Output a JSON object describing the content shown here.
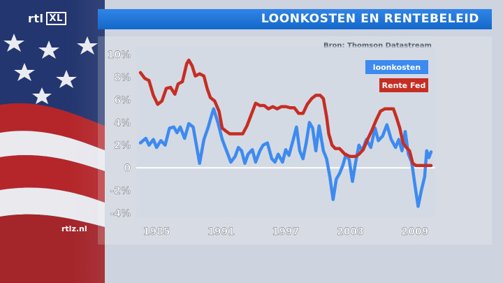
{
  "channel": {
    "logo_text": "rtl",
    "logo_box": "XL",
    "watermark": "rtlz.nl"
  },
  "header": {
    "title": "LOONKOSTEN EN RENTEBELEID"
  },
  "source": "Bron: Thomson Datastream",
  "colors": {
    "title_bar": "#1f77d9",
    "loonkosten": "#3d8bf0",
    "rente_fed": "#c62e24",
    "zero_line": "#ffffff"
  },
  "chart_data": {
    "type": "line",
    "title": "LOONKOSTEN EN RENTEBELEID",
    "xlabel": "",
    "ylabel": "",
    "x_ticks": [
      "1985",
      "1991",
      "1997",
      "2003",
      "2009"
    ],
    "y_ticks": [
      "10%",
      "8%",
      "6%",
      "4%",
      "2%",
      "0",
      "-2%",
      "-4%"
    ],
    "xlim": [
      1983.5,
      2010.5
    ],
    "ylim": [
      -4,
      10
    ],
    "grid": false,
    "legend_position": "top-right",
    "series": [
      {
        "name": "loonkosten",
        "color": "#3d8bf0",
        "points": [
          [
            1983.5,
            2.2
          ],
          [
            1984.0,
            2.6
          ],
          [
            1984.3,
            2.0
          ],
          [
            1984.7,
            2.5
          ],
          [
            1985.0,
            1.8
          ],
          [
            1985.4,
            2.4
          ],
          [
            1985.8,
            2.0
          ],
          [
            1986.2,
            3.5
          ],
          [
            1986.6,
            3.6
          ],
          [
            1986.9,
            3.1
          ],
          [
            1987.2,
            3.6
          ],
          [
            1987.6,
            2.6
          ],
          [
            1988.0,
            3.9
          ],
          [
            1988.4,
            3.6
          ],
          [
            1988.7,
            2.0
          ],
          [
            1989.0,
            0.4
          ],
          [
            1989.4,
            2.5
          ],
          [
            1989.8,
            3.6
          ],
          [
            1990.1,
            4.6
          ],
          [
            1990.3,
            5.2
          ],
          [
            1990.7,
            4.0
          ],
          [
            1991.1,
            2.5
          ],
          [
            1991.5,
            1.5
          ],
          [
            1991.9,
            0.5
          ],
          [
            1992.3,
            1.0
          ],
          [
            1992.6,
            1.8
          ],
          [
            1992.9,
            1.5
          ],
          [
            1993.2,
            0.4
          ],
          [
            1993.5,
            1.2
          ],
          [
            1993.9,
            1.6
          ],
          [
            1994.2,
            0.5
          ],
          [
            1994.6,
            1.5
          ],
          [
            1994.9,
            2.0
          ],
          [
            1995.3,
            2.2
          ],
          [
            1995.7,
            0.8
          ],
          [
            1996.0,
            0.5
          ],
          [
            1996.3,
            1.2
          ],
          [
            1996.7,
            0.5
          ],
          [
            1997.0,
            1.6
          ],
          [
            1997.3,
            1.1
          ],
          [
            1997.7,
            2.5
          ],
          [
            1998.0,
            3.6
          ],
          [
            1998.3,
            1.5
          ],
          [
            1998.6,
            0.8
          ],
          [
            1998.9,
            2.2
          ],
          [
            1999.2,
            4.0
          ],
          [
            1999.5,
            3.5
          ],
          [
            1999.8,
            1.5
          ],
          [
            2000.1,
            3.7
          ],
          [
            2000.5,
            1.5
          ],
          [
            2000.8,
            0.8
          ],
          [
            2001.1,
            -0.8
          ],
          [
            2001.4,
            -2.8
          ],
          [
            2001.7,
            -1.0
          ],
          [
            2002.0,
            -0.5
          ],
          [
            2002.3,
            0.2
          ],
          [
            2002.6,
            1.2
          ],
          [
            2002.9,
            0.7
          ],
          [
            2003.2,
            -1.2
          ],
          [
            2003.5,
            0.5
          ],
          [
            2003.8,
            2.0
          ],
          [
            2004.1,
            1.5
          ],
          [
            2004.5,
            2.5
          ],
          [
            2004.9,
            1.8
          ],
          [
            2005.3,
            3.5
          ],
          [
            2005.6,
            2.4
          ],
          [
            2006.0,
            2.8
          ],
          [
            2006.4,
            3.8
          ],
          [
            2006.8,
            2.5
          ],
          [
            2007.2,
            1.8
          ],
          [
            2007.5,
            2.5
          ],
          [
            2007.8,
            1.5
          ],
          [
            2008.1,
            3.2
          ],
          [
            2008.4,
            1.2
          ],
          [
            2008.7,
            0.5
          ],
          [
            2009.0,
            -1.5
          ],
          [
            2009.3,
            -3.4
          ],
          [
            2009.6,
            -2.0
          ],
          [
            2009.9,
            -0.8
          ],
          [
            2010.1,
            1.5
          ],
          [
            2010.3,
            0.9
          ],
          [
            2010.5,
            1.4
          ]
        ]
      },
      {
        "name": "Rente Fed",
        "color": "#c62e24",
        "points": [
          [
            1983.5,
            8.4
          ],
          [
            1983.9,
            7.9
          ],
          [
            1984.3,
            7.7
          ],
          [
            1984.7,
            6.4
          ],
          [
            1985.1,
            5.6
          ],
          [
            1985.5,
            5.9
          ],
          [
            1985.9,
            7.0
          ],
          [
            1986.3,
            7.1
          ],
          [
            1986.7,
            6.5
          ],
          [
            1987.0,
            7.4
          ],
          [
            1987.4,
            7.6
          ],
          [
            1987.8,
            9.2
          ],
          [
            1988.0,
            9.5
          ],
          [
            1988.3,
            9.0
          ],
          [
            1988.6,
            8.1
          ],
          [
            1989.0,
            8.3
          ],
          [
            1989.4,
            8.1
          ],
          [
            1989.7,
            7.0
          ],
          [
            1990.0,
            6.2
          ],
          [
            1990.4,
            5.9
          ],
          [
            1990.8,
            5.0
          ],
          [
            1991.1,
            3.5
          ],
          [
            1991.5,
            3.2
          ],
          [
            1991.8,
            3.0
          ],
          [
            1992.2,
            3.0
          ],
          [
            1992.6,
            3.0
          ],
          [
            1993.0,
            3.0
          ],
          [
            1993.4,
            3.7
          ],
          [
            1993.8,
            4.7
          ],
          [
            1994.2,
            5.7
          ],
          [
            1994.6,
            5.5
          ],
          [
            1995.0,
            5.5
          ],
          [
            1995.4,
            5.2
          ],
          [
            1995.8,
            5.4
          ],
          [
            1996.2,
            5.2
          ],
          [
            1996.6,
            5.4
          ],
          [
            1997.0,
            5.4
          ],
          [
            1997.4,
            5.3
          ],
          [
            1997.8,
            5.3
          ],
          [
            1998.2,
            4.8
          ],
          [
            1998.6,
            4.8
          ],
          [
            1999.0,
            5.6
          ],
          [
            1999.4,
            6.1
          ],
          [
            1999.8,
            6.4
          ],
          [
            2000.2,
            6.4
          ],
          [
            2000.5,
            6.1
          ],
          [
            2000.8,
            4.5
          ],
          [
            2001.0,
            3.0
          ],
          [
            2001.3,
            2.0
          ],
          [
            2001.6,
            1.7
          ],
          [
            2002.0,
            1.7
          ],
          [
            2002.5,
            1.2
          ],
          [
            2003.0,
            1.0
          ],
          [
            2003.5,
            1.0
          ],
          [
            2003.8,
            1.2
          ],
          [
            2004.2,
            1.6
          ],
          [
            2004.6,
            2.5
          ],
          [
            2005.0,
            3.3
          ],
          [
            2005.4,
            4.2
          ],
          [
            2005.8,
            5.0
          ],
          [
            2006.2,
            5.2
          ],
          [
            2006.6,
            5.2
          ],
          [
            2007.0,
            5.2
          ],
          [
            2007.3,
            4.4
          ],
          [
            2007.6,
            3.5
          ],
          [
            2007.9,
            2.2
          ],
          [
            2008.2,
            1.8
          ],
          [
            2008.5,
            1.5
          ],
          [
            2008.8,
            0.4
          ],
          [
            2009.1,
            0.2
          ],
          [
            2009.6,
            0.2
          ],
          [
            2010.0,
            0.2
          ],
          [
            2010.5,
            0.2
          ]
        ]
      }
    ]
  }
}
